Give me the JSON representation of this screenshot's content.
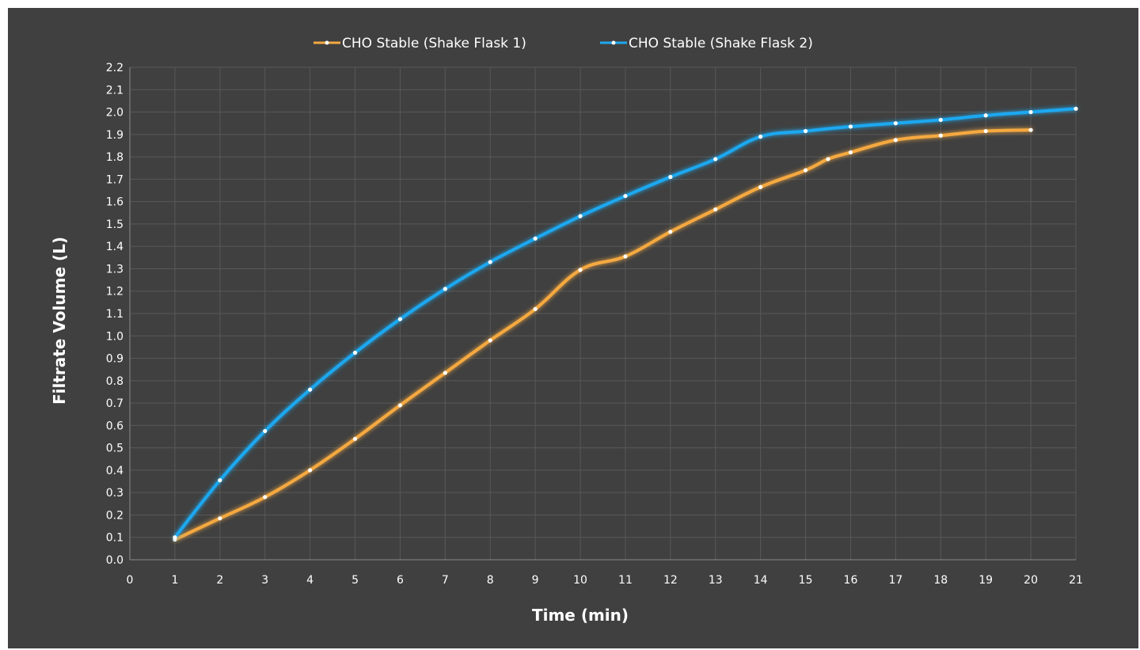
{
  "chart_data": {
    "type": "line",
    "title": "",
    "xlabel": "Time (min)",
    "ylabel": "Filtrate Volume (L)",
    "xlim": [
      0,
      21
    ],
    "ylim": [
      0,
      2.2
    ],
    "x_ticks": [
      "0",
      "1",
      "2",
      "3",
      "4",
      "5",
      "6",
      "7",
      "8",
      "9",
      "10",
      "11",
      "12",
      "13",
      "14",
      "15",
      "16",
      "17",
      "18",
      "19",
      "20",
      "21"
    ],
    "y_ticks": [
      "0.0",
      "0.1",
      "0.2",
      "0.3",
      "0.4",
      "0.5",
      "0.6",
      "0.7",
      "0.8",
      "0.9",
      "1.0",
      "1.1",
      "1.2",
      "1.3",
      "1.4",
      "1.5",
      "1.6",
      "1.7",
      "1.8",
      "1.9",
      "2.0",
      "2.1",
      "2.2"
    ],
    "grid": true,
    "legend_position": "top-center",
    "series": [
      {
        "name": "CHO Stable (Shake Flask 1)",
        "color": "#f5a940",
        "x": [
          1,
          2,
          3,
          4,
          5,
          6,
          7,
          8,
          9,
          10,
          11,
          12,
          13,
          14,
          15,
          15.5,
          16,
          17,
          18,
          19,
          20
        ],
        "y": [
          0.09,
          0.185,
          0.28,
          0.4,
          0.54,
          0.69,
          0.835,
          0.98,
          1.12,
          1.295,
          1.355,
          1.465,
          1.565,
          1.665,
          1.74,
          1.79,
          1.82,
          1.875,
          1.895,
          1.915,
          1.92
        ]
      },
      {
        "name": "CHO Stable (Shake Flask 2)",
        "color": "#1ea8f0",
        "x": [
          1,
          2,
          3,
          4,
          5,
          6,
          7,
          8,
          9,
          10,
          11,
          12,
          13,
          14,
          15,
          16,
          17,
          18,
          19,
          20,
          21
        ],
        "y": [
          0.1,
          0.355,
          0.575,
          0.76,
          0.925,
          1.075,
          1.21,
          1.33,
          1.435,
          1.535,
          1.625,
          1.71,
          1.79,
          1.89,
          1.915,
          1.935,
          1.95,
          1.965,
          1.985,
          2.0,
          2.015
        ]
      }
    ]
  }
}
